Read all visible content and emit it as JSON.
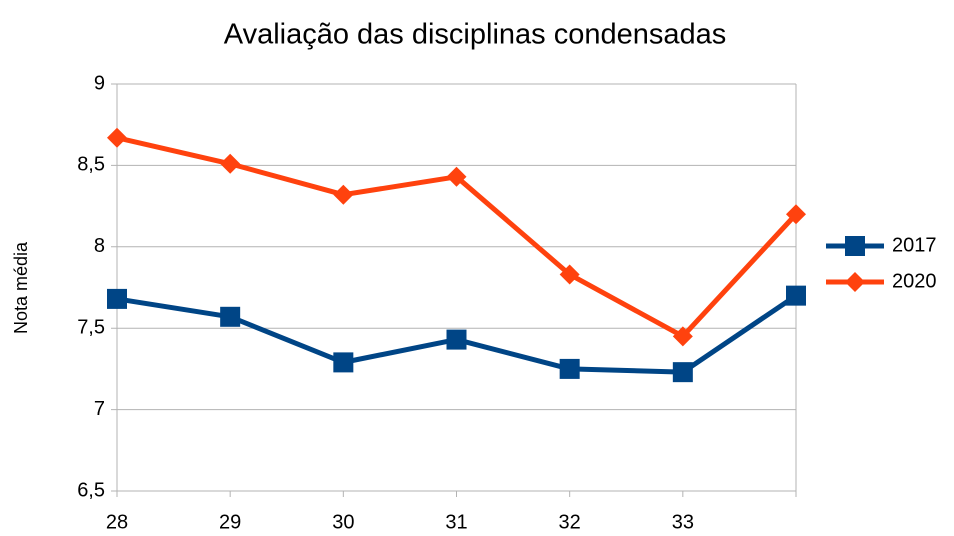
{
  "chart_data": {
    "type": "line",
    "title": "Avaliação das disciplinas condensadas",
    "y_label": "Nota média",
    "categories": [
      "28",
      "29",
      "30",
      "31",
      "32",
      "33",
      null
    ],
    "series": [
      {
        "name": "2017",
        "color": "#004586",
        "marker": "square",
        "values": [
          7.68,
          7.57,
          7.29,
          7.43,
          7.25,
          7.23,
          7.7
        ]
      },
      {
        "name": "2020",
        "color": "#ff420e",
        "marker": "diamond",
        "values": [
          8.67,
          8.51,
          8.32,
          8.43,
          7.83,
          7.45,
          8.2
        ]
      }
    ],
    "ylim": [
      6.5,
      9
    ],
    "yticks": [
      {
        "value": 6.5,
        "label": "6,5"
      },
      7,
      {
        "value": 7.5,
        "label": "7,5"
      },
      8,
      {
        "value": 8.5,
        "label": "8,5"
      },
      9
    ],
    "grid": true,
    "legend": "right"
  }
}
